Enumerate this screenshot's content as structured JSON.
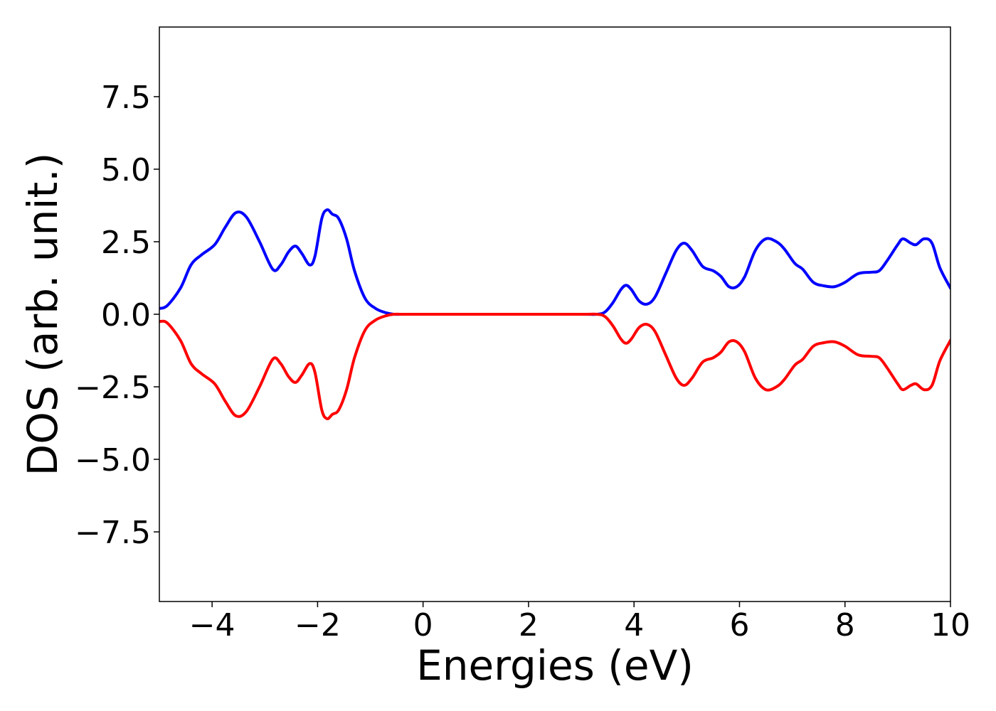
{
  "chart_data": {
    "type": "line",
    "title": "",
    "xlabel": "Energies (eV)",
    "ylabel": "DOS (arb. unit.)",
    "xlim": [
      -5,
      10
    ],
    "ylim": [
      -9.9,
      9.9
    ],
    "xticks": [
      -4,
      -2,
      0,
      2,
      4,
      6,
      8,
      10
    ],
    "xtick_labels": [
      "−4",
      "−2",
      "0",
      "2",
      "4",
      "6",
      "8",
      "10"
    ],
    "yticks": [
      -7.5,
      -5.0,
      -2.5,
      0.0,
      2.5,
      5.0,
      7.5
    ],
    "ytick_labels": [
      "−7.5",
      "−5.0",
      "−2.5",
      "0.0",
      "2.5",
      "5.0",
      "7.5"
    ],
    "grid": false,
    "legend": "none",
    "series": [
      {
        "color": "#0000ff",
        "x": [
          -5.0,
          -4.85,
          -4.6,
          -4.4,
          -4.2,
          -3.95,
          -3.75,
          -3.55,
          -3.35,
          -3.1,
          -2.85,
          -2.7,
          -2.55,
          -2.42,
          -2.3,
          -2.15,
          -2.05,
          -1.92,
          -1.82,
          -1.72,
          -1.6,
          -1.45,
          -1.3,
          -1.1,
          -0.9,
          -0.7,
          -0.55,
          -0.4,
          0.0,
          1.0,
          2.0,
          3.0,
          3.3,
          3.45,
          3.6,
          3.75,
          3.85,
          3.95,
          4.1,
          4.25,
          4.4,
          4.6,
          4.8,
          4.95,
          5.1,
          5.3,
          5.5,
          5.65,
          5.8,
          5.95,
          6.1,
          6.3,
          6.5,
          6.7,
          6.85,
          7.05,
          7.2,
          7.4,
          7.6,
          7.8,
          8.0,
          8.25,
          8.5,
          8.65,
          8.8,
          9.0,
          9.1,
          9.25,
          9.35,
          9.5,
          9.65,
          9.8,
          10.0
        ],
        "y": [
          0.2,
          0.3,
          0.9,
          1.7,
          2.05,
          2.4,
          3.0,
          3.5,
          3.35,
          2.5,
          1.55,
          1.7,
          2.15,
          2.35,
          2.1,
          1.7,
          2.0,
          3.3,
          3.6,
          3.45,
          3.3,
          2.6,
          1.5,
          0.55,
          0.2,
          0.05,
          0.0,
          0.0,
          0.0,
          0.0,
          0.0,
          0.0,
          0.0,
          0.08,
          0.4,
          0.85,
          1.0,
          0.85,
          0.45,
          0.35,
          0.6,
          1.4,
          2.2,
          2.45,
          2.2,
          1.65,
          1.5,
          1.3,
          0.95,
          0.95,
          1.3,
          2.2,
          2.6,
          2.5,
          2.25,
          1.75,
          1.55,
          1.1,
          0.98,
          0.95,
          1.1,
          1.4,
          1.45,
          1.5,
          1.85,
          2.4,
          2.6,
          2.45,
          2.4,
          2.6,
          2.45,
          1.6,
          0.9
        ]
      },
      {
        "color": "#ff0000",
        "x": [
          -5.0,
          -4.85,
          -4.6,
          -4.4,
          -4.2,
          -3.95,
          -3.75,
          -3.55,
          -3.35,
          -3.1,
          -2.85,
          -2.7,
          -2.55,
          -2.42,
          -2.3,
          -2.15,
          -2.05,
          -1.92,
          -1.82,
          -1.72,
          -1.6,
          -1.45,
          -1.3,
          -1.1,
          -0.9,
          -0.7,
          -0.55,
          -0.4,
          0.0,
          1.0,
          2.0,
          3.0,
          3.3,
          3.45,
          3.6,
          3.75,
          3.85,
          3.95,
          4.1,
          4.25,
          4.4,
          4.6,
          4.8,
          4.95,
          5.1,
          5.3,
          5.5,
          5.65,
          5.8,
          5.95,
          6.1,
          6.3,
          6.5,
          6.7,
          6.85,
          7.05,
          7.2,
          7.4,
          7.6,
          7.8,
          8.0,
          8.25,
          8.5,
          8.65,
          8.8,
          9.0,
          9.1,
          9.25,
          9.35,
          9.5,
          9.65,
          9.8,
          10.0
        ],
        "y": [
          -0.25,
          -0.3,
          -0.9,
          -1.7,
          -2.05,
          -2.4,
          -3.0,
          -3.5,
          -3.35,
          -2.5,
          -1.55,
          -1.7,
          -2.15,
          -2.35,
          -2.1,
          -1.7,
          -2.0,
          -3.3,
          -3.6,
          -3.45,
          -3.3,
          -2.6,
          -1.5,
          -0.55,
          -0.2,
          -0.05,
          0.0,
          0.0,
          0.0,
          0.0,
          0.0,
          0.0,
          0.0,
          -0.08,
          -0.4,
          -0.85,
          -1.0,
          -0.85,
          -0.45,
          -0.35,
          -0.6,
          -1.4,
          -2.2,
          -2.45,
          -2.2,
          -1.65,
          -1.5,
          -1.3,
          -0.95,
          -0.95,
          -1.3,
          -2.2,
          -2.6,
          -2.5,
          -2.25,
          -1.75,
          -1.55,
          -1.1,
          -0.98,
          -0.95,
          -1.1,
          -1.4,
          -1.45,
          -1.5,
          -1.85,
          -2.4,
          -2.6,
          -2.45,
          -2.4,
          -2.6,
          -2.45,
          -1.6,
          -0.9
        ]
      }
    ]
  }
}
